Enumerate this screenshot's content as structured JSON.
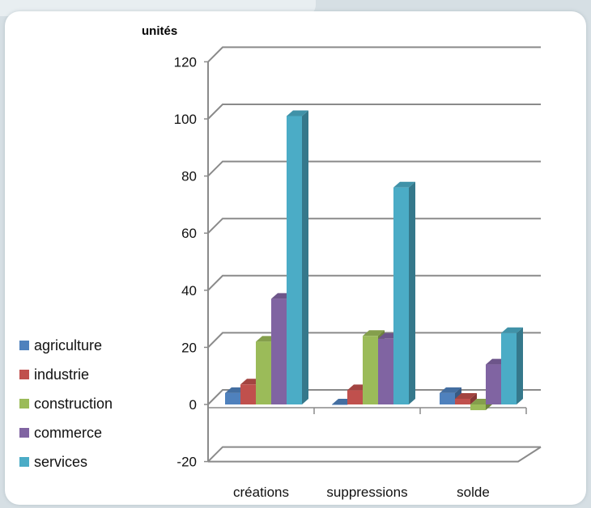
{
  "chart_data": {
    "type": "bar",
    "title": "",
    "ylabel": "unités",
    "xlabel": "",
    "categories": [
      "créations",
      "suppressions",
      "solde"
    ],
    "series": [
      {
        "name": "agriculture",
        "values": [
          4,
          0,
          4
        ],
        "color": "#4f81bd"
      },
      {
        "name": "industrie",
        "values": [
          7,
          5,
          2
        ],
        "color": "#c0504d"
      },
      {
        "name": "construction",
        "values": [
          22,
          24,
          -2
        ],
        "color": "#9bbb59"
      },
      {
        "name": "commerce",
        "values": [
          37,
          23,
          14
        ],
        "color": "#8064a2"
      },
      {
        "name": "services",
        "values": [
          101,
          76,
          25
        ],
        "color": "#4bacc6"
      }
    ],
    "ylim": [
      -20,
      120
    ],
    "yticks": [
      -20,
      0,
      20,
      40,
      60,
      80,
      100,
      120
    ],
    "grid": true,
    "legend_position": "left"
  }
}
